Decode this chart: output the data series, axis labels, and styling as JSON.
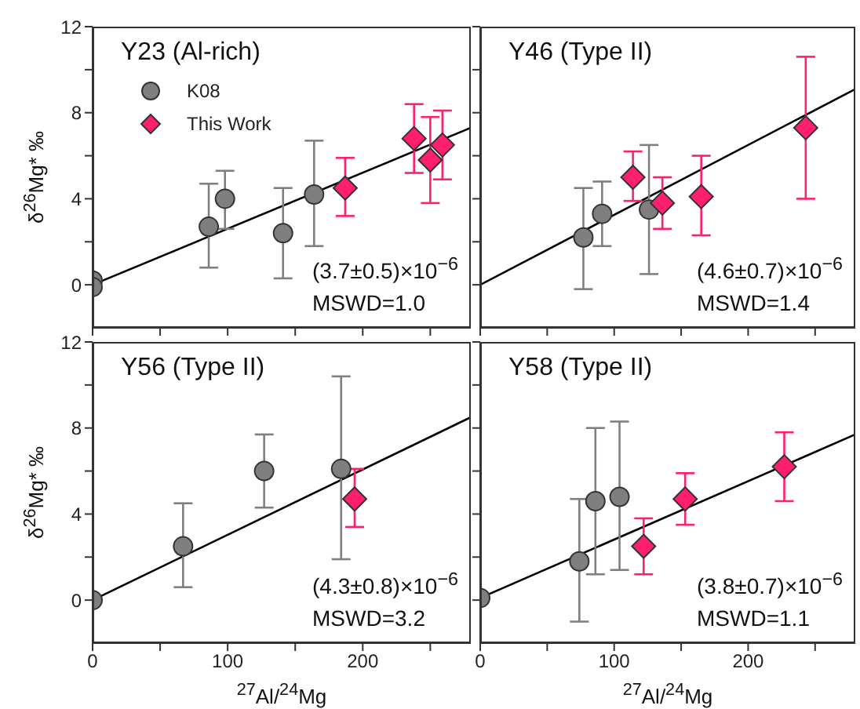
{
  "chart_data": [
    {
      "type": "scatter",
      "title": "Y23 (Al-rich)",
      "ylabel": "δ$^{26}$Mg* ‰",
      "xlim": [
        0,
        280
      ],
      "ylim": [
        -2,
        12
      ],
      "xticks": [
        0,
        {
          "value": 50,
          "label": null
        },
        100,
        {
          "value": 150,
          "label": null
        },
        200,
        {
          "value": 250,
          "label": null
        }
      ],
      "yticks": [
        0,
        {
          "value": 2,
          "label": null
        },
        4,
        {
          "value": 6,
          "label": null
        },
        8,
        {
          "value": 10,
          "label": null
        },
        12
      ],
      "tick_labels": "y",
      "legend": "top left",
      "annotations": [
        "(3.7±0.5)×10$^{−6}$",
        "MSWD=1.0"
      ],
      "series": [
        {
          "type": "line",
          "color": "#000000",
          "marker": "none",
          "x": [
            0,
            280
          ],
          "values": [
            0,
            7.3
          ]
        },
        {
          "name": "K08",
          "type": "scatter",
          "marker": "circle",
          "color": "#7f7f7f",
          "x": [
            0,
            0,
            86,
            98,
            141,
            164
          ],
          "values": [
            0.2,
            -0.1,
            2.7,
            4.0,
            2.4,
            4.2
          ],
          "errors": [
            null,
            null,
            [
              0.8,
              4.7
            ],
            [
              2.6,
              5.3
            ],
            [
              0.3,
              4.5
            ],
            [
              1.8,
              6.7
            ]
          ]
        },
        {
          "name": "This Work",
          "type": "scatter",
          "marker": "diamond",
          "color": "#ff1f6e",
          "x": [
            187,
            238,
            250,
            259
          ],
          "values": [
            4.5,
            6.8,
            5.8,
            6.5
          ],
          "errors": [
            [
              3.2,
              5.9
            ],
            [
              5.2,
              8.4
            ],
            [
              3.8,
              7.8
            ],
            [
              4.9,
              8.1
            ]
          ]
        }
      ]
    },
    {
      "type": "scatter",
      "title": "Y46 (Type II)",
      "xlim": [
        0,
        280
      ],
      "ylim": [
        -2,
        12
      ],
      "xticks": [
        0,
        {
          "value": 50,
          "label": null
        },
        100,
        {
          "value": 150,
          "label": null
        },
        200,
        {
          "value": 250,
          "label": null
        }
      ],
      "yticks": [
        0,
        {
          "value": 2,
          "label": null
        },
        4,
        {
          "value": 6,
          "label": null
        },
        8,
        {
          "value": 10,
          "label": null
        },
        12
      ],
      "tick_labels": false,
      "annotations": [
        "(4.6±0.7)×10$^{−6}$",
        "MSWD=1.4"
      ],
      "series": [
        {
          "type": "line",
          "color": "#000000",
          "marker": "none",
          "x": [
            0,
            280
          ],
          "values": [
            0,
            9.1
          ]
        },
        {
          "type": "scatter",
          "marker": "circle",
          "color": "#7f7f7f",
          "x": [
            77,
            91,
            126
          ],
          "values": [
            2.2,
            3.3,
            3.5
          ],
          "errors": [
            [
              -0.2,
              4.5
            ],
            [
              1.8,
              4.8
            ],
            [
              0.5,
              6.5
            ]
          ]
        },
        {
          "type": "scatter",
          "marker": "diamond",
          "color": "#ff1f6e",
          "x": [
            114,
            136,
            165,
            243
          ],
          "values": [
            5.0,
            3.8,
            4.1,
            7.3
          ],
          "errors": [
            [
              3.9,
              6.2
            ],
            [
              2.6,
              5.0
            ],
            [
              2.3,
              6.0
            ],
            [
              4.0,
              10.6
            ]
          ]
        }
      ]
    },
    {
      "type": "scatter",
      "title": "Y56 (Type II)",
      "xlabel": "$^{27}$Al/$^{24}$Mg",
      "ylabel": "δ$^{26}$Mg* ‰",
      "xlim": [
        0,
        280
      ],
      "ylim": [
        -2,
        12
      ],
      "xticks": [
        0,
        {
          "value": 50,
          "label": null
        },
        100,
        {
          "value": 150,
          "label": null
        },
        200,
        {
          "value": 250,
          "label": null
        }
      ],
      "yticks": [
        0,
        {
          "value": 2,
          "label": null
        },
        4,
        {
          "value": 6,
          "label": null
        },
        8,
        {
          "value": 10,
          "label": null
        },
        12
      ],
      "annotations": [
        "(4.3±0.8)×10$^{−6}$",
        "MSWD=3.2"
      ],
      "series": [
        {
          "type": "line",
          "color": "#000000",
          "marker": "none",
          "x": [
            0,
            280
          ],
          "values": [
            0,
            8.5
          ]
        },
        {
          "type": "scatter",
          "marker": "circle",
          "color": "#7f7f7f",
          "x": [
            0,
            67,
            127,
            184
          ],
          "values": [
            0,
            2.5,
            6.0,
            6.1
          ],
          "errors": [
            null,
            [
              0.6,
              4.5
            ],
            [
              4.3,
              7.7
            ],
            [
              1.9,
              10.4
            ]
          ]
        },
        {
          "type": "scatter",
          "marker": "diamond",
          "color": "#ff1f6e",
          "x": [
            194
          ],
          "values": [
            4.7
          ],
          "errors": [
            [
              3.4,
              6.1
            ]
          ]
        }
      ]
    },
    {
      "type": "scatter",
      "title": "Y58 (Type II)",
      "xlabel": "$^{27}$Al/$^{24}$Mg",
      "xlim": [
        0,
        280
      ],
      "ylim": [
        -2,
        12
      ],
      "xticks": [
        0,
        {
          "value": 50,
          "label": null
        },
        100,
        {
          "value": 150,
          "label": null
        },
        200,
        {
          "value": 250,
          "label": null
        }
      ],
      "yticks": [
        0,
        {
          "value": 2,
          "label": null
        },
        4,
        {
          "value": 6,
          "label": null
        },
        8,
        {
          "value": 10,
          "label": null
        },
        12
      ],
      "tick_labels": "x",
      "annotations": [
        "(3.8±0.7)×10$^{−6}$",
        "MSWD=1.1"
      ],
      "series": [
        {
          "type": "line",
          "color": "#000000",
          "marker": "none",
          "x": [
            0,
            280
          ],
          "values": [
            0.1,
            7.7
          ]
        },
        {
          "type": "scatter",
          "marker": "circle",
          "color": "#7f7f7f",
          "x": [
            0,
            74,
            86,
            104
          ],
          "values": [
            0.1,
            1.8,
            4.6,
            4.8
          ],
          "errors": [
            null,
            [
              -1.0,
              4.7
            ],
            [
              1.2,
              8.0
            ],
            [
              1.4,
              8.3
            ]
          ]
        },
        {
          "type": "scatter",
          "marker": "diamond",
          "color": "#ff1f6e",
          "x": [
            122,
            153,
            227
          ],
          "values": [
            2.5,
            4.7,
            6.2
          ],
          "errors": [
            [
              1.2,
              3.8
            ],
            [
              3.5,
              5.9
            ],
            [
              4.6,
              7.8
            ]
          ]
        }
      ]
    }
  ]
}
